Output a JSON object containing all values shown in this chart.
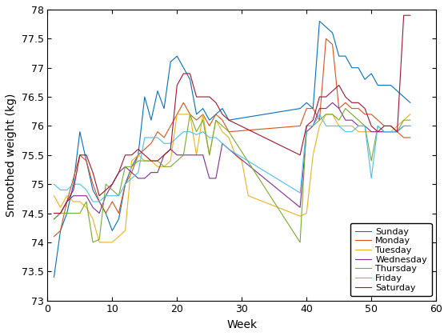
{
  "title": "",
  "xlabel": "Week",
  "ylabel": "Smoothed weight (kg)",
  "xlim": [
    0,
    60
  ],
  "ylim": [
    73,
    78
  ],
  "yticks": [
    73,
    73.5,
    74,
    74.5,
    75,
    75.5,
    76,
    76.5,
    77,
    77.5,
    78
  ],
  "xticks": [
    0,
    10,
    20,
    30,
    40,
    50,
    60
  ],
  "days": [
    "Sunday",
    "Monday",
    "Tuesday",
    "Wednesday",
    "Thursday",
    "Friday",
    "Saturday"
  ],
  "colors": [
    "#0072BD",
    "#D95319",
    "#EDB120",
    "#7E2F8E",
    "#77AC30",
    "#4DBEEE",
    "#A2142F"
  ],
  "sunday_x": [
    1,
    2,
    3,
    4,
    5,
    6,
    7,
    8,
    9,
    10,
    11,
    12,
    13,
    14,
    15,
    16,
    17,
    18,
    19,
    20,
    21,
    22,
    23,
    24,
    25,
    26,
    27,
    28,
    39,
    40,
    41,
    42,
    43,
    44,
    45,
    46,
    47,
    48,
    49,
    50,
    51,
    52,
    53,
    54,
    55,
    56
  ],
  "sunday_y": [
    73.4,
    74.2,
    74.5,
    75.0,
    75.9,
    75.4,
    74.9,
    74.7,
    74.5,
    74.2,
    74.4,
    75.0,
    75.3,
    75.5,
    76.5,
    76.1,
    76.6,
    76.3,
    77.1,
    77.2,
    77.0,
    76.8,
    76.2,
    76.3,
    76.1,
    76.2,
    76.3,
    76.1,
    76.3,
    76.4,
    76.3,
    77.8,
    77.7,
    77.6,
    77.2,
    77.2,
    77.0,
    77.0,
    76.8,
    76.9,
    76.7,
    76.7,
    76.7,
    76.6,
    76.5,
    76.4
  ],
  "monday_x": [
    1,
    2,
    3,
    4,
    5,
    6,
    7,
    8,
    9,
    10,
    11,
    12,
    13,
    14,
    15,
    16,
    17,
    18,
    19,
    20,
    21,
    22,
    23,
    24,
    25,
    26,
    27,
    28,
    39,
    40,
    41,
    42,
    43,
    44,
    45,
    46,
    47,
    48,
    49,
    50,
    51,
    52,
    53,
    54,
    55,
    56
  ],
  "monday_y": [
    74.1,
    74.2,
    74.7,
    75.1,
    75.5,
    75.4,
    75.0,
    74.7,
    74.5,
    74.7,
    74.5,
    75.0,
    75.2,
    75.5,
    75.6,
    75.7,
    75.9,
    75.8,
    76.0,
    76.2,
    76.4,
    76.2,
    76.1,
    76.2,
    76.0,
    76.2,
    76.1,
    75.9,
    76.0,
    76.3,
    76.3,
    76.1,
    77.5,
    77.4,
    76.3,
    76.4,
    76.3,
    76.3,
    76.2,
    76.2,
    76.1,
    76.0,
    76.0,
    75.9,
    75.8,
    75.8
  ],
  "tuesday_x": [
    1,
    2,
    3,
    4,
    5,
    6,
    7,
    8,
    9,
    10,
    11,
    12,
    13,
    14,
    15,
    16,
    17,
    18,
    19,
    20,
    21,
    22,
    23,
    24,
    25,
    26,
    27,
    28,
    29,
    30,
    31,
    39,
    40,
    41,
    42,
    43,
    44,
    45,
    46,
    47,
    48,
    49,
    50,
    51,
    52,
    53,
    54,
    55,
    56
  ],
  "tuesday_y": [
    74.8,
    74.6,
    74.8,
    74.7,
    74.7,
    74.6,
    74.4,
    74.0,
    74.0,
    74.0,
    74.1,
    74.2,
    75.4,
    75.5,
    75.4,
    75.4,
    75.3,
    75.3,
    75.4,
    76.2,
    76.2,
    76.2,
    75.5,
    76.2,
    75.5,
    76.1,
    75.9,
    75.8,
    75.5,
    75.4,
    74.8,
    74.45,
    74.5,
    75.5,
    76.0,
    76.2,
    76.2,
    76.0,
    76.0,
    76.0,
    75.9,
    75.9,
    75.9,
    75.9,
    75.9,
    75.9,
    76.0,
    76.1,
    76.2
  ],
  "wednesday_x": [
    1,
    2,
    3,
    4,
    5,
    6,
    7,
    8,
    9,
    10,
    11,
    12,
    13,
    14,
    15,
    16,
    17,
    18,
    19,
    20,
    21,
    22,
    23,
    24,
    25,
    26,
    27,
    28,
    39,
    40,
    41,
    42,
    43,
    44,
    45,
    46,
    47,
    48,
    49,
    50,
    51,
    52,
    53,
    54,
    55,
    56
  ],
  "wednesday_y": [
    74.4,
    74.5,
    74.7,
    74.8,
    74.8,
    74.8,
    74.6,
    74.5,
    74.8,
    75.0,
    75.2,
    75.3,
    75.2,
    75.1,
    75.1,
    75.2,
    75.2,
    75.5,
    75.6,
    75.5,
    75.5,
    75.5,
    75.5,
    75.5,
    75.1,
    75.1,
    75.7,
    75.6,
    74.6,
    75.9,
    76.0,
    76.3,
    76.3,
    76.4,
    76.3,
    76.1,
    76.1,
    76.0,
    76.0,
    75.9,
    75.9,
    75.9,
    75.9,
    75.9,
    76.0,
    76.0
  ],
  "thursday_x": [
    1,
    2,
    3,
    4,
    5,
    6,
    7,
    8,
    9,
    10,
    11,
    12,
    13,
    14,
    15,
    16,
    17,
    18,
    19,
    20,
    21,
    22,
    23,
    24,
    25,
    26,
    27,
    28,
    39,
    40,
    41,
    42,
    43,
    44,
    45,
    46,
    47,
    48,
    49,
    50,
    51,
    52,
    53,
    54,
    55,
    56
  ],
  "thursday_y": [
    74.4,
    74.5,
    74.5,
    74.5,
    74.5,
    74.7,
    74.0,
    74.05,
    75.0,
    74.9,
    74.8,
    75.3,
    75.3,
    75.4,
    75.4,
    75.4,
    75.4,
    75.3,
    75.3,
    75.4,
    75.5,
    76.2,
    75.9,
    76.1,
    75.5,
    76.1,
    76.0,
    75.9,
    74.0,
    76.0,
    76.0,
    76.1,
    76.2,
    76.2,
    76.1,
    76.3,
    76.2,
    76.1,
    76.0,
    75.4,
    76.0,
    75.9,
    75.9,
    75.9,
    76.1,
    76.1
  ],
  "friday_x": [
    1,
    2,
    3,
    4,
    5,
    6,
    7,
    8,
    9,
    10,
    11,
    12,
    13,
    14,
    15,
    16,
    17,
    18,
    19,
    20,
    21,
    22,
    23,
    24,
    25,
    26,
    27,
    28,
    39,
    40,
    41,
    42,
    43,
    44,
    45,
    46,
    47,
    48,
    49,
    50,
    51,
    52,
    53,
    54,
    55,
    56
  ],
  "friday_y": [
    75.0,
    74.9,
    74.9,
    75.0,
    75.0,
    74.9,
    74.7,
    74.7,
    74.8,
    74.8,
    74.8,
    75.0,
    75.1,
    75.2,
    75.8,
    75.8,
    75.8,
    75.7,
    75.7,
    75.8,
    75.9,
    75.9,
    75.85,
    75.9,
    75.8,
    75.8,
    75.7,
    75.6,
    74.85,
    76.0,
    76.0,
    76.2,
    76.0,
    76.0,
    76.0,
    75.9,
    75.9,
    76.0,
    76.0,
    75.1,
    76.0,
    75.9,
    75.9,
    75.9,
    76.0,
    76.0
  ],
  "saturday_x": [
    1,
    2,
    3,
    4,
    5,
    6,
    7,
    8,
    9,
    10,
    11,
    12,
    13,
    14,
    15,
    16,
    17,
    18,
    19,
    20,
    21,
    22,
    23,
    24,
    25,
    26,
    27,
    28,
    39,
    40,
    41,
    42,
    43,
    44,
    45,
    46,
    47,
    48,
    49,
    50,
    51,
    52,
    53,
    54,
    55,
    56
  ],
  "saturday_y": [
    74.5,
    74.5,
    74.7,
    74.9,
    75.5,
    75.5,
    75.2,
    74.8,
    74.9,
    75.0,
    75.2,
    75.5,
    75.5,
    75.6,
    75.5,
    75.4,
    75.4,
    75.5,
    75.6,
    76.7,
    76.9,
    76.9,
    76.5,
    76.5,
    76.5,
    76.4,
    76.2,
    76.1,
    75.5,
    76.0,
    76.1,
    76.5,
    76.5,
    76.6,
    76.7,
    76.5,
    76.4,
    76.4,
    76.3,
    76.0,
    75.9,
    76.0,
    76.0,
    75.9,
    77.9,
    77.9
  ]
}
